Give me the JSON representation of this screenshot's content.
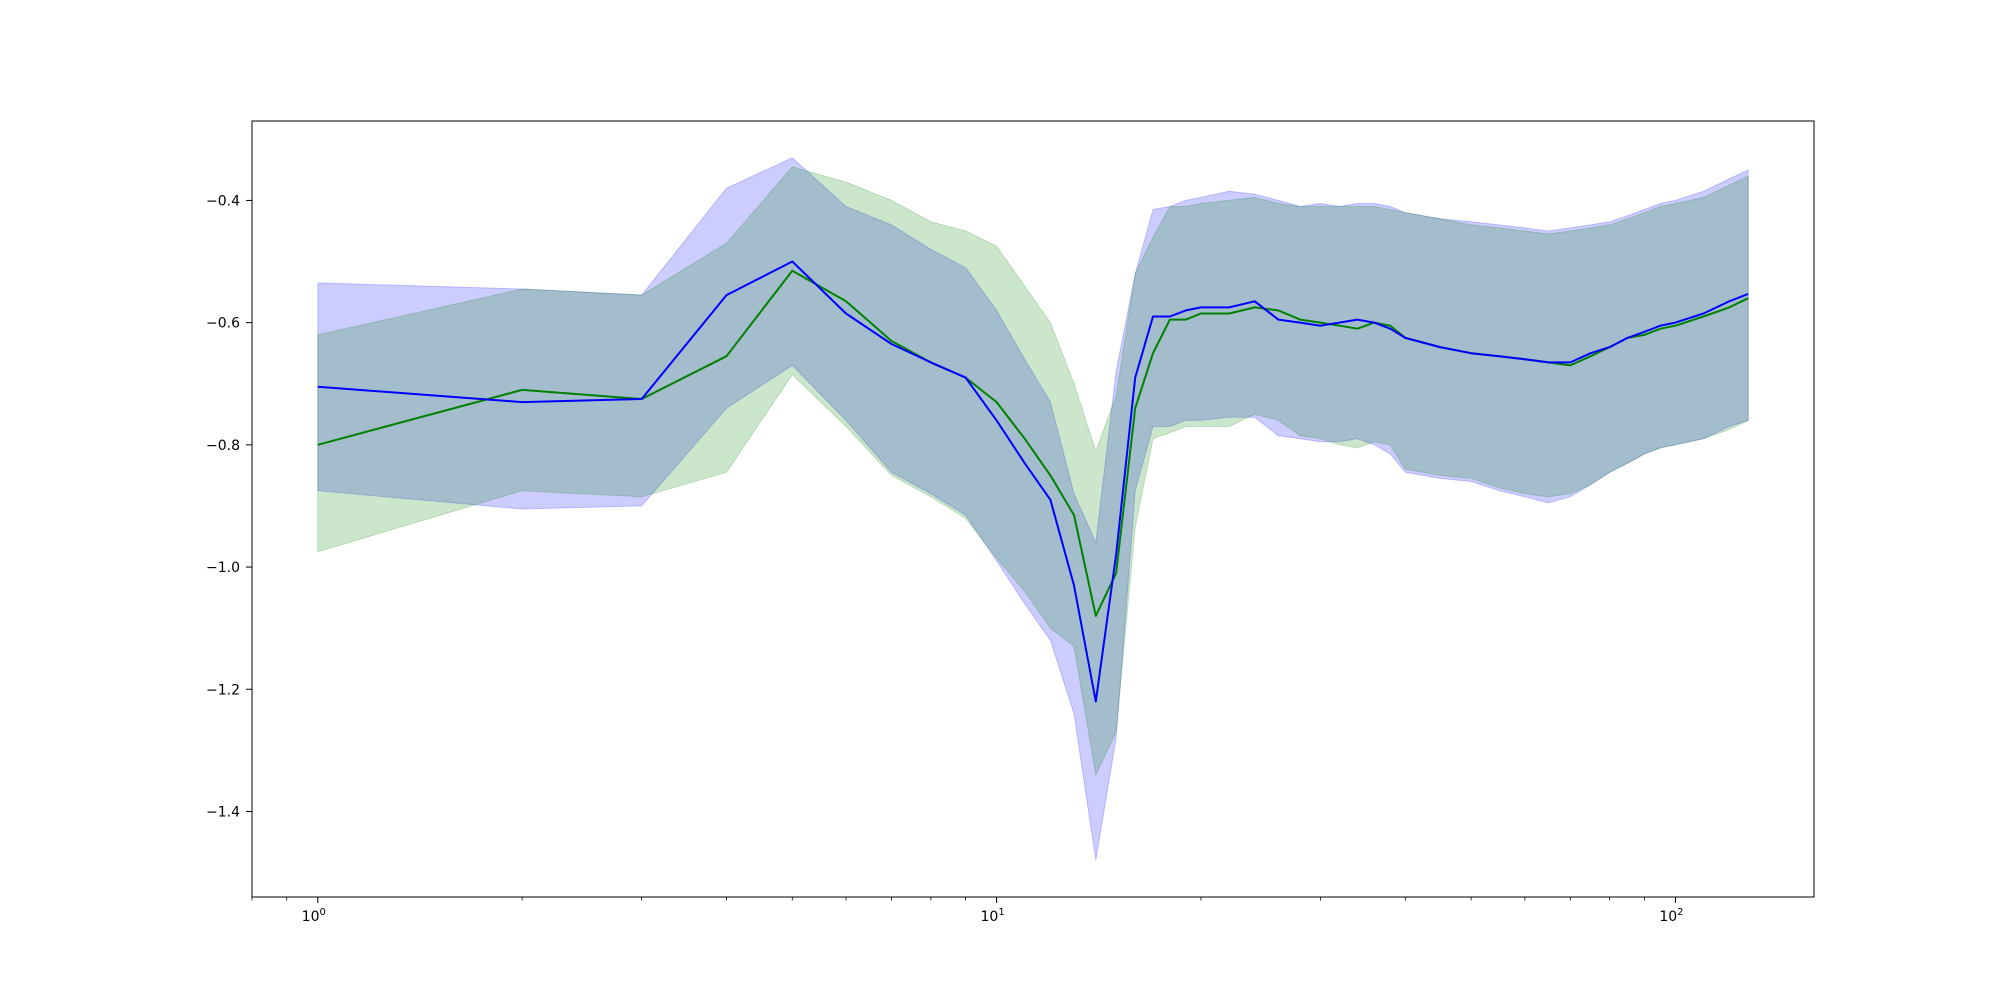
{
  "chart_data": {
    "type": "line",
    "title": "",
    "xlabel": "",
    "ylabel": "",
    "xscale": "log",
    "xlim": [
      0.8,
      160
    ],
    "ylim": [
      -1.54,
      -0.27
    ],
    "grid": false,
    "legend": "none",
    "x_ticks": [
      {
        "value": 1,
        "label": "10^0",
        "base": "10",
        "exp": "0"
      },
      {
        "value": 10,
        "label": "10^1",
        "base": "10",
        "exp": "1"
      },
      {
        "value": 100,
        "label": "10^2",
        "base": "10",
        "exp": "2"
      }
    ],
    "y_ticks": [
      {
        "value": -0.4,
        "label": "−0.4"
      },
      {
        "value": -0.6,
        "label": "−0.6"
      },
      {
        "value": -0.8,
        "label": "−0.8"
      },
      {
        "value": -1.0,
        "label": "−1.0"
      },
      {
        "value": -1.2,
        "label": "−1.2"
      },
      {
        "value": -1.4,
        "label": "−1.4"
      }
    ],
    "series": [
      {
        "color": "#0000ff",
        "band_color": "#0000ff",
        "band_opacity": 0.2,
        "x": [
          1,
          2,
          3,
          4,
          5,
          6,
          7,
          8,
          9,
          10,
          11,
          12,
          13,
          14,
          15,
          16,
          17,
          18,
          19,
          20,
          22,
          24,
          26,
          28,
          30,
          32,
          34,
          36,
          38,
          40,
          45,
          50,
          55,
          60,
          65,
          70,
          75,
          80,
          85,
          90,
          95,
          100,
          110,
          120,
          128
        ],
        "y": [
          -0.705,
          -0.73,
          -0.725,
          -0.555,
          -0.5,
          -0.585,
          -0.635,
          -0.665,
          -0.69,
          -0.76,
          -0.83,
          -0.89,
          -1.03,
          -1.22,
          -0.98,
          -0.69,
          -0.59,
          -0.59,
          -0.58,
          -0.575,
          -0.575,
          -0.565,
          -0.595,
          -0.6,
          -0.605,
          -0.6,
          -0.595,
          -0.6,
          -0.61,
          -0.625,
          -0.64,
          -0.65,
          -0.655,
          -0.66,
          -0.665,
          -0.665,
          -0.65,
          -0.64,
          -0.625,
          -0.615,
          -0.605,
          -0.6,
          -0.585,
          -0.565,
          -0.553
        ],
        "upper": [
          -0.535,
          -0.545,
          -0.555,
          -0.38,
          -0.33,
          -0.41,
          -0.44,
          -0.48,
          -0.51,
          -0.58,
          -0.66,
          -0.73,
          -0.88,
          -0.96,
          -0.68,
          -0.52,
          -0.415,
          -0.41,
          -0.4,
          -0.395,
          -0.385,
          -0.39,
          -0.4,
          -0.41,
          -0.405,
          -0.41,
          -0.405,
          -0.405,
          -0.41,
          -0.42,
          -0.43,
          -0.435,
          -0.44,
          -0.445,
          -0.45,
          -0.445,
          -0.44,
          -0.435,
          -0.425,
          -0.415,
          -0.405,
          -0.4,
          -0.385,
          -0.365,
          -0.35
        ],
        "lower": [
          -0.875,
          -0.905,
          -0.9,
          -0.74,
          -0.67,
          -0.76,
          -0.845,
          -0.88,
          -0.915,
          -0.99,
          -1.06,
          -1.12,
          -1.24,
          -1.48,
          -1.28,
          -0.875,
          -0.77,
          -0.77,
          -0.76,
          -0.76,
          -0.755,
          -0.755,
          -0.785,
          -0.79,
          -0.795,
          -0.795,
          -0.79,
          -0.8,
          -0.815,
          -0.845,
          -0.855,
          -0.86,
          -0.875,
          -0.885,
          -0.895,
          -0.885,
          -0.865,
          -0.845,
          -0.83,
          -0.815,
          -0.805,
          -0.8,
          -0.79,
          -0.77,
          -0.76
        ]
      },
      {
        "color": "#008000",
        "band_color": "#008000",
        "band_opacity": 0.2,
        "x": [
          1,
          2,
          3,
          4,
          5,
          6,
          7,
          8,
          9,
          10,
          11,
          12,
          13,
          14,
          15,
          16,
          17,
          18,
          19,
          20,
          22,
          24,
          26,
          28,
          30,
          32,
          34,
          36,
          38,
          40,
          45,
          50,
          55,
          60,
          65,
          70,
          75,
          80,
          85,
          90,
          95,
          100,
          110,
          120,
          128
        ],
        "y": [
          -0.8,
          -0.71,
          -0.725,
          -0.655,
          -0.515,
          -0.565,
          -0.63,
          -0.665,
          -0.69,
          -0.73,
          -0.79,
          -0.85,
          -0.915,
          -1.08,
          -1.01,
          -0.74,
          -0.65,
          -0.595,
          -0.595,
          -0.585,
          -0.585,
          -0.575,
          -0.58,
          -0.595,
          -0.6,
          -0.605,
          -0.61,
          -0.6,
          -0.605,
          -0.625,
          -0.64,
          -0.65,
          -0.655,
          -0.66,
          -0.665,
          -0.67,
          -0.655,
          -0.64,
          -0.625,
          -0.62,
          -0.61,
          -0.605,
          -0.59,
          -0.575,
          -0.56
        ],
        "upper": [
          -0.62,
          -0.545,
          -0.555,
          -0.47,
          -0.345,
          -0.37,
          -0.4,
          -0.435,
          -0.45,
          -0.475,
          -0.54,
          -0.6,
          -0.7,
          -0.81,
          -0.72,
          -0.52,
          -0.46,
          -0.41,
          -0.41,
          -0.405,
          -0.4,
          -0.395,
          -0.405,
          -0.41,
          -0.41,
          -0.41,
          -0.41,
          -0.41,
          -0.415,
          -0.42,
          -0.43,
          -0.44,
          -0.445,
          -0.45,
          -0.455,
          -0.45,
          -0.445,
          -0.44,
          -0.43,
          -0.42,
          -0.41,
          -0.405,
          -0.395,
          -0.375,
          -0.36
        ],
        "lower": [
          -0.975,
          -0.875,
          -0.885,
          -0.845,
          -0.685,
          -0.77,
          -0.85,
          -0.885,
          -0.92,
          -0.985,
          -1.04,
          -1.1,
          -1.13,
          -1.34,
          -1.27,
          -0.935,
          -0.79,
          -0.78,
          -0.77,
          -0.77,
          -0.77,
          -0.75,
          -0.76,
          -0.785,
          -0.79,
          -0.8,
          -0.805,
          -0.795,
          -0.8,
          -0.84,
          -0.85,
          -0.855,
          -0.87,
          -0.88,
          -0.885,
          -0.88,
          -0.865,
          -0.845,
          -0.83,
          -0.815,
          -0.805,
          -0.8,
          -0.79,
          -0.775,
          -0.76
        ]
      }
    ]
  }
}
